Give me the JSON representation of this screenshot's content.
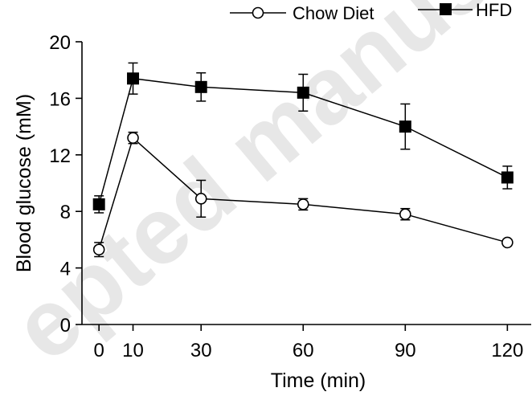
{
  "chart_data": {
    "type": "line",
    "xlabel": "Time (min)",
    "ylabel": "Blood glucose (mM)",
    "x": [
      0,
      10,
      30,
      60,
      90,
      120
    ],
    "x_ticks": [
      0,
      10,
      30,
      60,
      90,
      120
    ],
    "y_ticks": [
      0,
      4,
      8,
      12,
      16,
      20
    ],
    "xlim": [
      -5,
      127
    ],
    "ylim": [
      0,
      20
    ],
    "grid": false,
    "legend_position": "top-right",
    "series": [
      {
        "name": "Chow Diet",
        "marker": "open-circle",
        "values": [
          5.3,
          13.2,
          8.9,
          8.5,
          7.8,
          5.8
        ],
        "errors": [
          0.5,
          0.4,
          1.3,
          0.4,
          0.4,
          0.2
        ]
      },
      {
        "name": "HFD",
        "marker": "filled-square",
        "values": [
          8.5,
          17.4,
          16.8,
          16.4,
          14.0,
          10.4
        ],
        "errors": [
          0.6,
          1.1,
          1.0,
          1.3,
          1.6,
          0.8
        ]
      }
    ]
  },
  "watermark": "epted manus",
  "colors": {
    "line": "#000000",
    "watermark": "#d4d4d4"
  }
}
